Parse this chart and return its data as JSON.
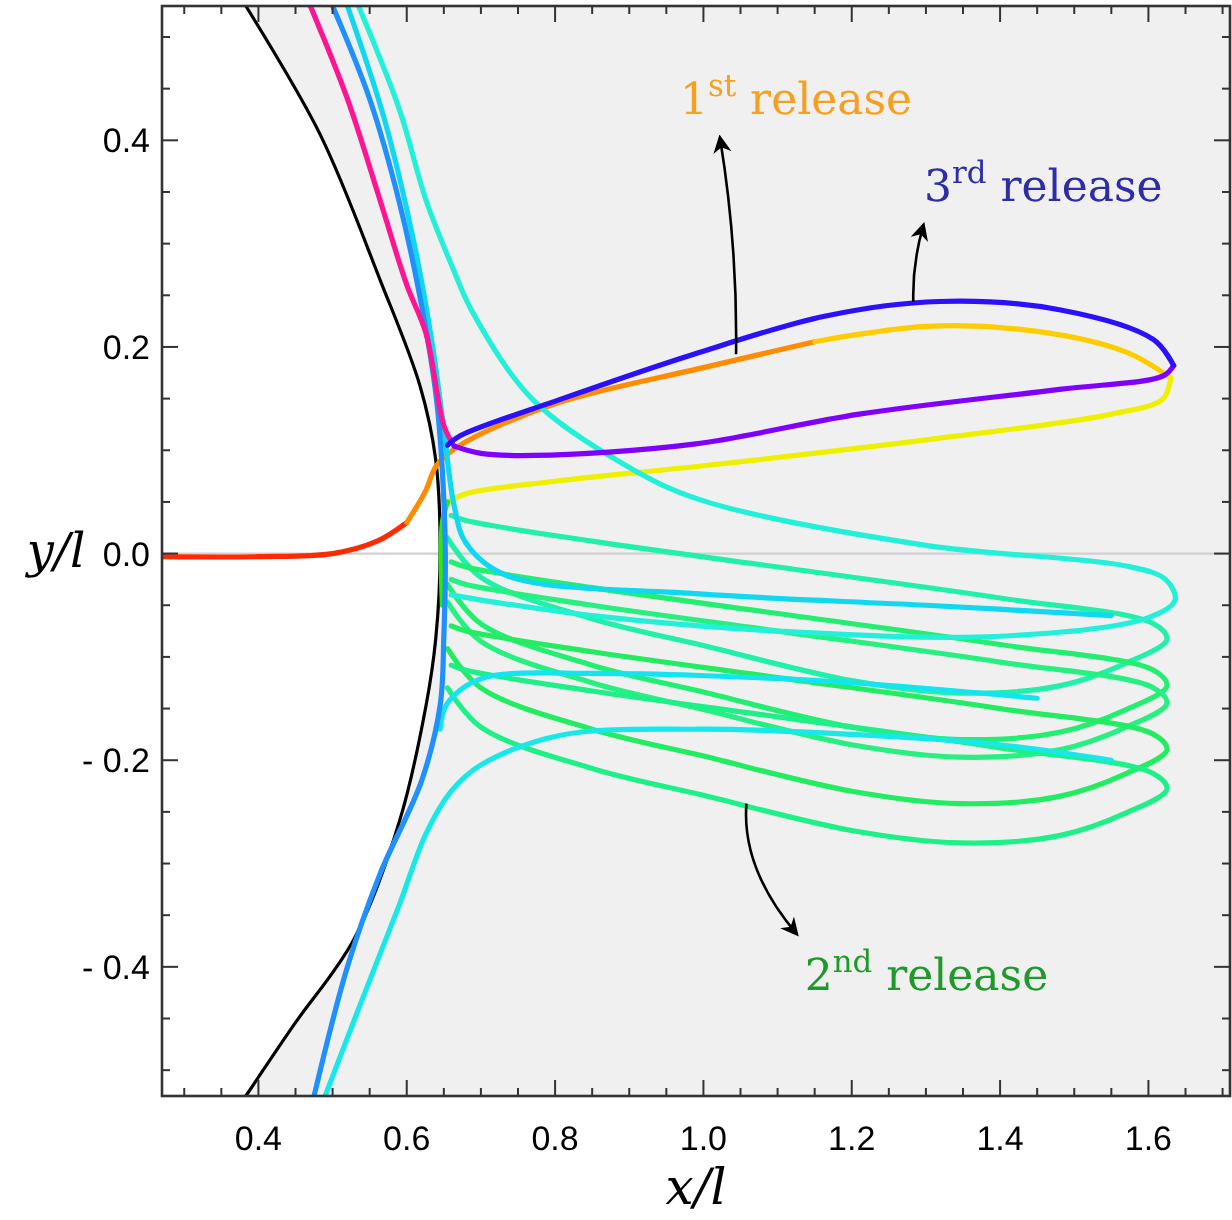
{
  "chart_data": {
    "type": "line",
    "xlabel": "x/l",
    "ylabel": "y/l",
    "xlim": [
      0.27,
      1.71
    ],
    "ylim": [
      -0.525,
      0.53
    ],
    "xticks": [
      {
        "value": 0.3,
        "label": null
      },
      {
        "value": 0.35,
        "label": null
      },
      {
        "value": 0.4,
        "label": "0.4"
      },
      {
        "value": 0.45,
        "label": null
      },
      {
        "value": 0.5,
        "label": null
      },
      {
        "value": 0.55,
        "label": null
      },
      {
        "value": 0.6,
        "label": "0.6"
      },
      {
        "value": 0.65,
        "label": null
      },
      {
        "value": 0.7,
        "label": null
      },
      {
        "value": 0.75,
        "label": null
      },
      {
        "value": 0.8,
        "label": "0.8"
      },
      {
        "value": 0.85,
        "label": null
      },
      {
        "value": 0.9,
        "label": null
      },
      {
        "value": 0.95,
        "label": null
      },
      {
        "value": 1.0,
        "label": "1.0"
      },
      {
        "value": 1.05,
        "label": null
      },
      {
        "value": 1.1,
        "label": null
      },
      {
        "value": 1.15,
        "label": null
      },
      {
        "value": 1.2,
        "label": "1.2"
      },
      {
        "value": 1.25,
        "label": null
      },
      {
        "value": 1.3,
        "label": null
      },
      {
        "value": 1.35,
        "label": null
      },
      {
        "value": 1.4,
        "label": "1.4"
      },
      {
        "value": 1.45,
        "label": null
      },
      {
        "value": 1.5,
        "label": null
      },
      {
        "value": 1.55,
        "label": null
      },
      {
        "value": 1.6,
        "label": "1.6"
      },
      {
        "value": 1.65,
        "label": null
      },
      {
        "value": 1.7,
        "label": null
      }
    ],
    "yticks": [
      {
        "value": -0.5,
        "label": null
      },
      {
        "value": -0.45,
        "label": null
      },
      {
        "value": -0.4,
        "label": "- 0.4"
      },
      {
        "value": -0.35,
        "label": null
      },
      {
        "value": -0.3,
        "label": null
      },
      {
        "value": -0.25,
        "label": null
      },
      {
        "value": -0.2,
        "label": "- 0.2"
      },
      {
        "value": -0.15,
        "label": null
      },
      {
        "value": -0.1,
        "label": null
      },
      {
        "value": -0.05,
        "label": null
      },
      {
        "value": 0,
        "label": "0.0"
      },
      {
        "value": 0.05,
        "label": null
      },
      {
        "value": 0.1,
        "label": null
      },
      {
        "value": 0.15,
        "label": null
      },
      {
        "value": 0.2,
        "label": "0.2"
      },
      {
        "value": 0.25,
        "label": null
      },
      {
        "value": 0.3,
        "label": null
      },
      {
        "value": 0.35,
        "label": null
      },
      {
        "value": 0.4,
        "label": "0.4"
      },
      {
        "value": 0.45,
        "label": null
      },
      {
        "value": 0.5,
        "label": null
      }
    ],
    "ref_lines": [
      {
        "axis": "y",
        "value": 0,
        "color": "#d0d0d0"
      }
    ],
    "annotations": [
      {
        "text": "1$^{st}$ release",
        "x": 1.044,
        "y": 0.193
      },
      {
        "text": "2$^{nd}$ release",
        "x": 1.058,
        "y": -0.242
      },
      {
        "text": "3$^{rd}$ release",
        "x": 1.283,
        "y": 0.244
      }
    ],
    "series": [
      {
        "color": "#000000",
        "x": [
          0.383,
          0.483,
          0.564,
          0.618,
          0.639,
          0.645,
          0.639,
          0.626,
          0.591,
          0.529,
          0.448,
          0.383
        ],
        "values": [
          0.53,
          0.406,
          0.265,
          0.162,
          0.091,
          0.0,
          -0.083,
          -0.147,
          -0.257,
          -0.373,
          -0.456,
          -0.525
        ]
      },
      {
        "color": "#ff2a00",
        "x": [
          0.27,
          0.4,
          0.5,
          0.56,
          0.6
        ],
        "values": [
          -0.003,
          -0.003,
          0.0,
          0.012,
          0.03
        ]
      },
      {
        "color": "#ff8c00",
        "x": [
          0.6,
          0.625,
          0.64,
          0.67,
          0.8,
          1.0,
          1.15
        ],
        "values": [
          0.03,
          0.06,
          0.085,
          0.104,
          0.145,
          0.18,
          0.205
        ]
      },
      {
        "color": "#ffcc00",
        "x": [
          1.15,
          1.3,
          1.45,
          1.57,
          1.63
        ],
        "values": [
          0.205,
          0.22,
          0.215,
          0.195,
          0.17
        ]
      },
      {
        "color": "#eef000",
        "x": [
          1.63,
          1.62,
          1.55,
          1.3,
          1.0,
          0.8,
          0.68,
          0.655
        ],
        "values": [
          0.17,
          0.15,
          0.135,
          0.11,
          0.085,
          0.07,
          0.058,
          0.05
        ]
      },
      {
        "color": "#22f000",
        "x": [
          0.655,
          0.648,
          0.648
        ],
        "values": [
          0.05,
          0.03,
          -0.05
        ]
      },
      {
        "color": "#20f0a8",
        "x": [
          0.655,
          0.7,
          0.85,
          1.0,
          1.2,
          1.345,
          1.48,
          1.57,
          1.625,
          1.607,
          1.4,
          1.1,
          0.85,
          0.68,
          0.66
        ],
        "values": [
          0.015,
          -0.023,
          -0.063,
          -0.089,
          -0.123,
          -0.135,
          -0.128,
          -0.106,
          -0.083,
          -0.068,
          -0.043,
          -0.013,
          0.012,
          0.032,
          0.037
        ]
      },
      {
        "color": "#22ee70",
        "x": [
          0.655,
          0.7,
          0.85,
          1.0,
          1.2,
          1.345,
          1.48,
          1.57,
          1.625,
          1.607,
          1.4,
          1.1,
          0.85,
          0.68,
          0.66
        ],
        "values": [
          -0.03,
          -0.068,
          -0.108,
          -0.134,
          -0.168,
          -0.18,
          -0.173,
          -0.151,
          -0.128,
          -0.113,
          -0.088,
          -0.058,
          -0.033,
          -0.013,
          -0.008
        ]
      },
      {
        "color": "#26f080",
        "x": [
          0.655,
          0.7,
          0.85,
          1.0,
          1.2,
          1.345,
          1.48,
          1.57,
          1.625,
          1.607,
          1.4,
          1.1,
          0.85,
          0.68,
          0.66
        ],
        "values": [
          -0.047,
          -0.085,
          -0.125,
          -0.151,
          -0.185,
          -0.197,
          -0.19,
          -0.168,
          -0.145,
          -0.13,
          -0.105,
          -0.075,
          -0.05,
          -0.03,
          -0.025
        ]
      },
      {
        "color": "#22ec60",
        "x": [
          0.655,
          0.7,
          0.85,
          1.0,
          1.2,
          1.345,
          1.48,
          1.57,
          1.625,
          1.607,
          1.4,
          1.1,
          0.85,
          0.68,
          0.66
        ],
        "values": [
          -0.092,
          -0.13,
          -0.17,
          -0.196,
          -0.23,
          -0.242,
          -0.235,
          -0.213,
          -0.19,
          -0.175,
          -0.15,
          -0.12,
          -0.095,
          -0.075,
          -0.07
        ]
      },
      {
        "color": "#1ef088",
        "x": [
          0.655,
          0.7,
          0.85,
          1.0,
          1.2,
          1.345,
          1.48,
          1.57,
          1.625,
          1.607,
          1.4,
          1.1,
          0.85,
          0.68,
          0.66
        ],
        "values": [
          -0.13,
          -0.168,
          -0.208,
          -0.234,
          -0.268,
          -0.28,
          -0.273,
          -0.251,
          -0.228,
          -0.213,
          -0.188,
          -0.158,
          -0.133,
          -0.113,
          -0.108
        ]
      },
      {
        "color": "#22f0d8",
        "x": [
          0.535,
          0.59,
          0.626,
          0.66,
          0.69,
          0.77,
          0.896,
          0.996,
          1.3,
          1.57,
          1.623,
          1.636,
          1.6,
          1.4,
          1.1,
          0.85,
          0.7,
          0.66
        ],
        "values": [
          0.53,
          0.43,
          0.342,
          0.28,
          0.232,
          0.149,
          0.085,
          0.052,
          0.008,
          -0.012,
          -0.025,
          -0.045,
          -0.062,
          -0.08,
          -0.075,
          -0.06,
          -0.045,
          -0.04
        ]
      },
      {
        "color": "#10d8f0",
        "x": [
          0.52,
          0.57,
          0.61,
          0.635,
          0.65,
          0.664,
          0.68,
          0.734,
          0.995,
          1.3,
          1.55
        ],
        "values": [
          0.53,
          0.42,
          0.3,
          0.2,
          0.12,
          0.046,
          0.01,
          -0.021,
          -0.039,
          -0.05,
          -0.06
        ]
      },
      {
        "color": "#18e8e8",
        "x": [
          0.49,
          0.537,
          0.59,
          0.626,
          0.66,
          0.699,
          0.806,
          0.995,
          1.2,
          1.4,
          1.55
        ],
        "values": [
          -0.525,
          -0.437,
          -0.34,
          -0.271,
          -0.23,
          -0.205,
          -0.176,
          -0.17,
          -0.175,
          -0.185,
          -0.2
        ]
      },
      {
        "color": "#14e4f0",
        "x": [
          0.645,
          0.653,
          0.68,
          0.717,
          0.85,
          0.995,
          1.2,
          1.45
        ],
        "values": [
          -0.17,
          -0.147,
          -0.128,
          -0.118,
          -0.116,
          -0.118,
          -0.125,
          -0.14
        ]
      },
      {
        "color": "#1e90ff",
        "x": [
          0.5,
          0.55,
          0.59,
          0.62,
          0.64,
          0.648,
          0.652,
          0.65,
          0.645,
          0.62,
          0.564,
          0.52,
          0.475
        ],
        "values": [
          0.53,
          0.44,
          0.34,
          0.24,
          0.15,
          0.08,
          0.0,
          -0.08,
          -0.147,
          -0.22,
          -0.31,
          -0.4,
          -0.525
        ]
      },
      {
        "color": "#ff1493",
        "x": [
          0.47,
          0.52,
          0.564,
          0.6,
          0.626,
          0.65,
          0.664
        ],
        "values": [
          0.53,
          0.44,
          0.342,
          0.26,
          0.213,
          0.124,
          0.104
        ]
      },
      {
        "color": "#8000ff",
        "x": [
          0.664,
          0.7,
          0.772,
          0.987,
          1.21,
          1.48,
          1.62,
          1.634
        ],
        "values": [
          0.104,
          0.097,
          0.095,
          0.106,
          0.135,
          0.159,
          0.172,
          0.182
        ]
      },
      {
        "color": "#2a10ff",
        "x": [
          1.634,
          1.607,
          1.48,
          1.318,
          1.165,
          0.987,
          0.806,
          0.672,
          0.655
        ],
        "values": [
          0.182,
          0.207,
          0.236,
          0.244,
          0.23,
          0.193,
          0.149,
          0.114,
          0.105
        ]
      }
    ]
  }
}
